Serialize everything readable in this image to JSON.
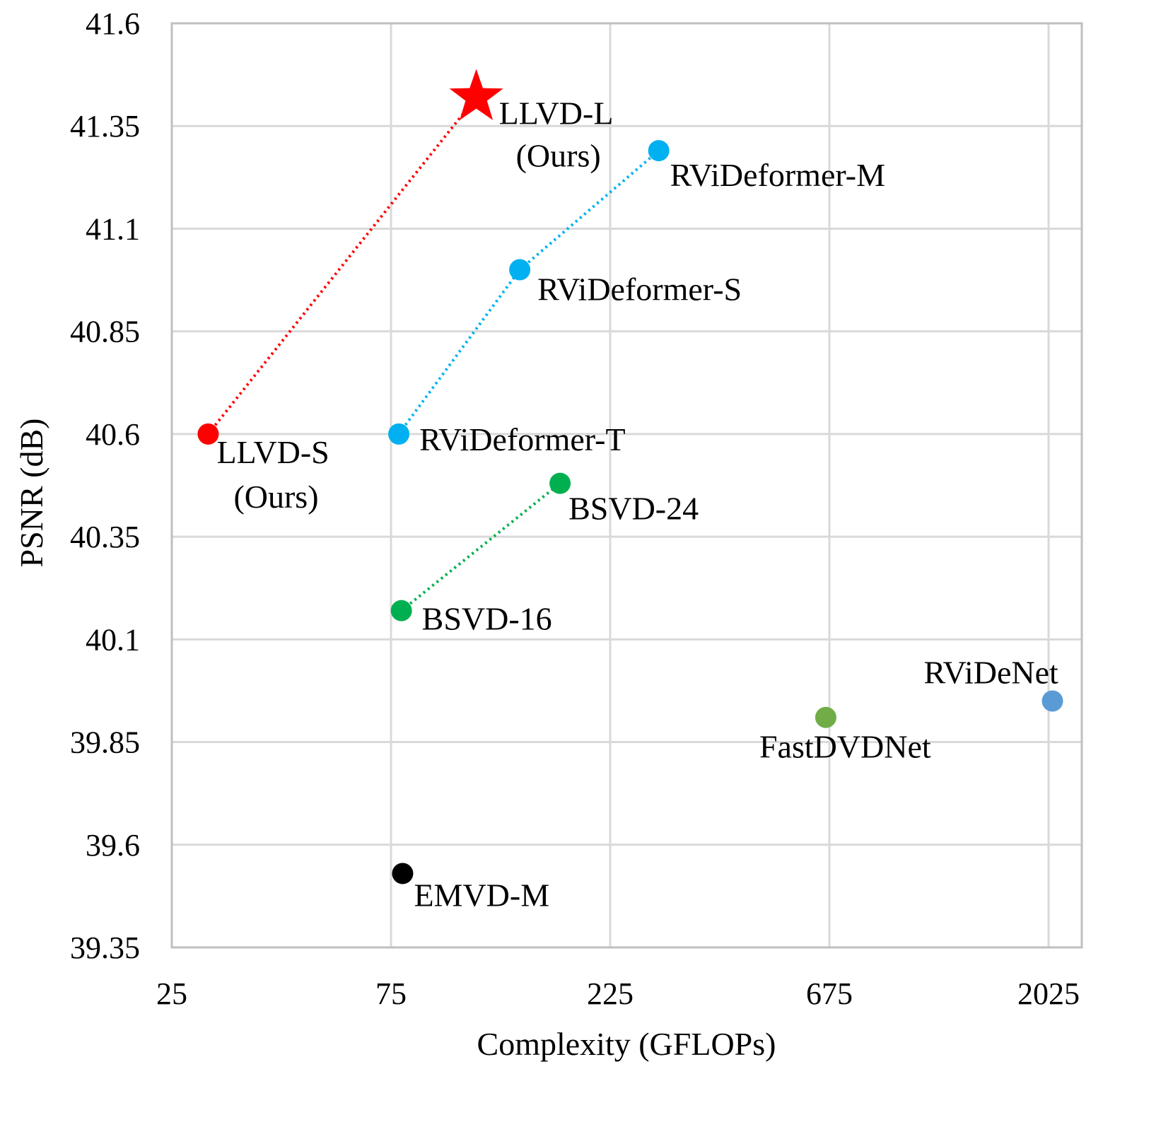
{
  "chart_data": {
    "type": "scatter",
    "title": "",
    "xlabel": "Complexity (GFLOPs)",
    "ylabel": "PSNR (dB)",
    "x_scale": "log",
    "xlim": [
      25,
      2500
    ],
    "ylim": [
      39.35,
      41.6
    ],
    "x_ticks": [
      "25",
      "75",
      "225",
      "675",
      "2025"
    ],
    "y_ticks": [
      "41.6",
      "41.35",
      "41.1",
      "40.85",
      "40.6",
      "40.35",
      "40.1",
      "39.85",
      "39.6",
      "39.35"
    ],
    "grid": true,
    "legend": "none",
    "points": [
      {
        "label": "LLVD-L",
        "label2": "(Ours)",
        "x": 115,
        "y": 41.42,
        "color": "#ff0000",
        "marker": "star"
      },
      {
        "label": "RViDeformer-M",
        "x": 287,
        "y": 41.29,
        "color": "#00b0f0",
        "marker": "circle"
      },
      {
        "label": "RViDeformer-S",
        "x": 143,
        "y": 41.0,
        "color": "#00b0f0",
        "marker": "circle"
      },
      {
        "label": "RViDeformer-T",
        "x": 78,
        "y": 40.6,
        "color": "#00b0f0",
        "marker": "circle"
      },
      {
        "label": "LLVD-S",
        "label2": "(Ours)",
        "x": 30,
        "y": 40.6,
        "color": "#ff0000",
        "marker": "circle"
      },
      {
        "label": "BSVD-24",
        "x": 175,
        "y": 40.48,
        "color": "#00b050",
        "marker": "circle"
      },
      {
        "label": "BSVD-16",
        "x": 79,
        "y": 40.17,
        "color": "#00b050",
        "marker": "circle"
      },
      {
        "label": "RViDeNet",
        "x": 2065,
        "y": 39.95,
        "color": "#5b9bd5",
        "marker": "circle"
      },
      {
        "label": "FastDVDNet",
        "x": 663,
        "y": 39.91,
        "color": "#70ad47",
        "marker": "circle"
      },
      {
        "label": "EMVD-M",
        "x": 79.5,
        "y": 39.53,
        "color": "#000000",
        "marker": "circle"
      }
    ],
    "connections": [
      {
        "from": "LLVD-S",
        "to": "LLVD-L",
        "color": "#ff0000",
        "style": "dotted"
      },
      {
        "from": "RViDeformer-T",
        "to": "RViDeformer-S",
        "color": "#00b0f0",
        "style": "dotted"
      },
      {
        "from": "RViDeformer-S",
        "to": "RViDeformer-M",
        "color": "#00b0f0",
        "style": "dotted"
      },
      {
        "from": "BSVD-16",
        "to": "BSVD-24",
        "color": "#00b050",
        "style": "dotted"
      }
    ]
  }
}
